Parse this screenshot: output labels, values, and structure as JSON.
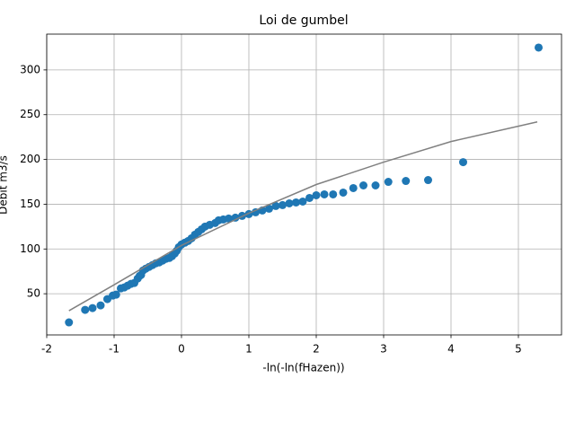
{
  "chart_data": {
    "type": "scatter",
    "title": "Loi de gumbel",
    "x_label": "-ln(-ln(fHazen))",
    "y_label": "Debit m3/s",
    "xlim": [
      -2.0,
      5.64
    ],
    "ylim": [
      4,
      340
    ],
    "xticks": [
      -2,
      -1,
      0,
      1,
      2,
      3,
      4,
      5
    ],
    "yticks": [
      50,
      100,
      150,
      200,
      250,
      300
    ],
    "grid": true,
    "series": [
      {
        "type": "scatter",
        "color": "#1f77b4",
        "x": [
          -1.67,
          -1.43,
          -1.32,
          -1.2,
          -1.1,
          -1.02,
          -0.97,
          -0.9,
          -0.85,
          -0.8,
          -0.75,
          -0.7,
          -0.65,
          -0.62,
          -0.6,
          -0.57,
          -0.53,
          -0.48,
          -0.43,
          -0.38,
          -0.33,
          -0.28,
          -0.23,
          -0.18,
          -0.14,
          -0.1,
          -0.07,
          -0.04,
          0,
          0.05,
          0.1,
          0.15,
          0.2,
          0.25,
          0.3,
          0.35,
          0.42,
          0.5,
          0.55,
          0.62,
          0.7,
          0.8,
          0.9,
          1.0,
          1.1,
          1.2,
          1.3,
          1.4,
          1.5,
          1.6,
          1.7,
          1.8,
          1.9,
          2.0,
          2.12,
          2.25,
          2.4,
          2.55,
          2.7,
          2.88,
          3.07,
          3.33,
          3.66,
          4.18,
          5.3
        ],
        "values": [
          18,
          32,
          34,
          37,
          44,
          48,
          49,
          56,
          57,
          59,
          61,
          62,
          67,
          70,
          71,
          76,
          78,
          80,
          82,
          84,
          85,
          87,
          89,
          90,
          92,
          95,
          98,
          102,
          105,
          107,
          109,
          112,
          116,
          119,
          122,
          125,
          127,
          129,
          132,
          133,
          134,
          135,
          137,
          139,
          141,
          143,
          145,
          148,
          149,
          151,
          152,
          153,
          157,
          160,
          161,
          161,
          163,
          168,
          171,
          171,
          175,
          176,
          177,
          197,
          325
        ]
      },
      {
        "type": "line",
        "color": "#808080",
        "x": [
          -1.67,
          -1,
          0,
          1,
          2,
          3,
          4,
          5.28
        ],
        "values": [
          31,
          60,
          104,
          140,
          172,
          197,
          220,
          242
        ]
      }
    ]
  }
}
